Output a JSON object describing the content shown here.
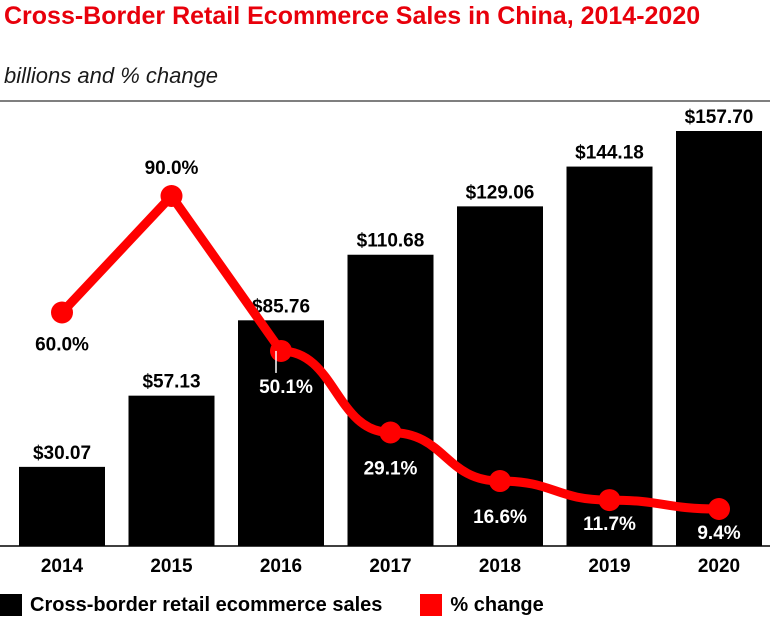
{
  "title": "Cross-Border Retail Ecommerce Sales in China, 2014-2020",
  "subtitle": "billions and % change",
  "colors": {
    "bar": "#000000",
    "line": "#ff0000",
    "title": "#e8000b"
  },
  "chart_data": {
    "type": "bar",
    "categories": [
      "2014",
      "2015",
      "2016",
      "2017",
      "2018",
      "2019",
      "2020"
    ],
    "series": [
      {
        "name": "Cross-border retail ecommerce sales",
        "type": "bar",
        "values": [
          30.07,
          57.13,
          85.76,
          110.68,
          129.06,
          144.18,
          157.7
        ],
        "labels": [
          "$30.07",
          "$57.13",
          "$85.76",
          "$110.68",
          "$129.06",
          "$144.18",
          "$157.70"
        ]
      },
      {
        "name": "% change",
        "type": "line",
        "values": [
          60.0,
          90.0,
          50.1,
          29.1,
          16.6,
          11.7,
          9.4
        ],
        "labels": [
          "60.0%",
          "90.0%",
          "50.1%",
          "29.1%",
          "16.6%",
          "11.7%",
          "9.4%"
        ]
      }
    ],
    "legend_position": "bottom-left",
    "grid": false
  }
}
